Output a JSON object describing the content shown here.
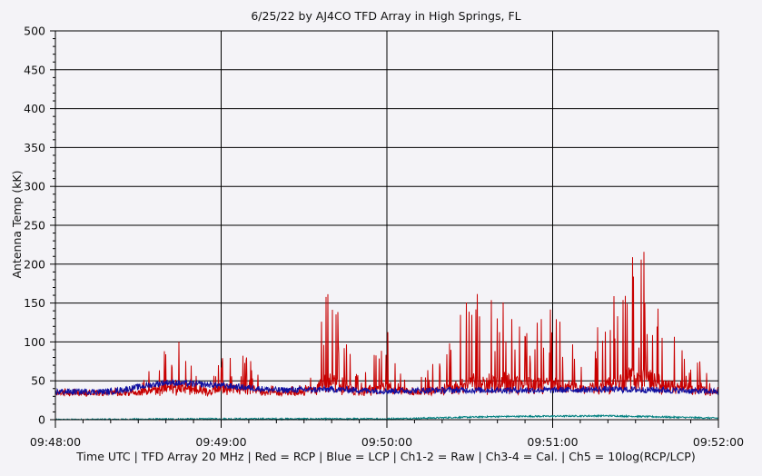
{
  "chart_data": {
    "type": "line",
    "title": "6/25/22  by  AJ4CO TFD Array  in  High Springs, FL",
    "ylabel": "Antenna Temp (kK)",
    "xlabel": "Time UTC | TFD Array 20 MHz | Red = RCP | Blue = LCP | Ch1-2 = Raw | Ch3-4 = Cal. | Ch5 = 10log(RCP/LCP)",
    "ylim": [
      0,
      500
    ],
    "xlim": [
      "09:48:00",
      "09:52:00"
    ],
    "y_ticks": [
      "0",
      "50",
      "100",
      "150",
      "200",
      "250",
      "300",
      "350",
      "400",
      "450",
      "500"
    ],
    "x_ticks": [
      "09:48:00",
      "09:49:00",
      "09:50:00",
      "09:51:00",
      "09:52:00"
    ],
    "grid": true,
    "colors": {
      "rcp": "#c80000",
      "lcp": "#1010a0",
      "ratio": "#008080",
      "plot_background": "#f4f3f7",
      "grid": "#000000"
    },
    "series": [
      {
        "name": "Red = RCP",
        "x_seconds": [
          0,
          5,
          10,
          20,
          30,
          40,
          45,
          50,
          55,
          60,
          70,
          80,
          90,
          100,
          110,
          120,
          130,
          140,
          150,
          160,
          170,
          180,
          190,
          200,
          210,
          220,
          230,
          240
        ],
        "values": [
          36,
          40,
          35,
          38,
          45,
          90,
          118,
          60,
          40,
          85,
          80,
          40,
          45,
          190,
          50,
          120,
          45,
          85,
          160,
          175,
          160,
          140,
          90,
          142,
          248,
          142,
          90,
          38
        ]
      },
      {
        "name": "Blue = LCP",
        "x_seconds": [
          0,
          20,
          40,
          60,
          80,
          100,
          120,
          140,
          160,
          180,
          200,
          220,
          240
        ],
        "values": [
          36,
          36,
          48,
          44,
          38,
          39,
          37,
          38,
          38,
          38,
          39,
          38,
          36
        ]
      },
      {
        "name": "Ch5 = 10log(RCP/LCP)",
        "x_seconds": [
          0,
          60,
          120,
          160,
          200,
          240
        ],
        "values": [
          0,
          1,
          1,
          4,
          5,
          2
        ]
      }
    ]
  }
}
